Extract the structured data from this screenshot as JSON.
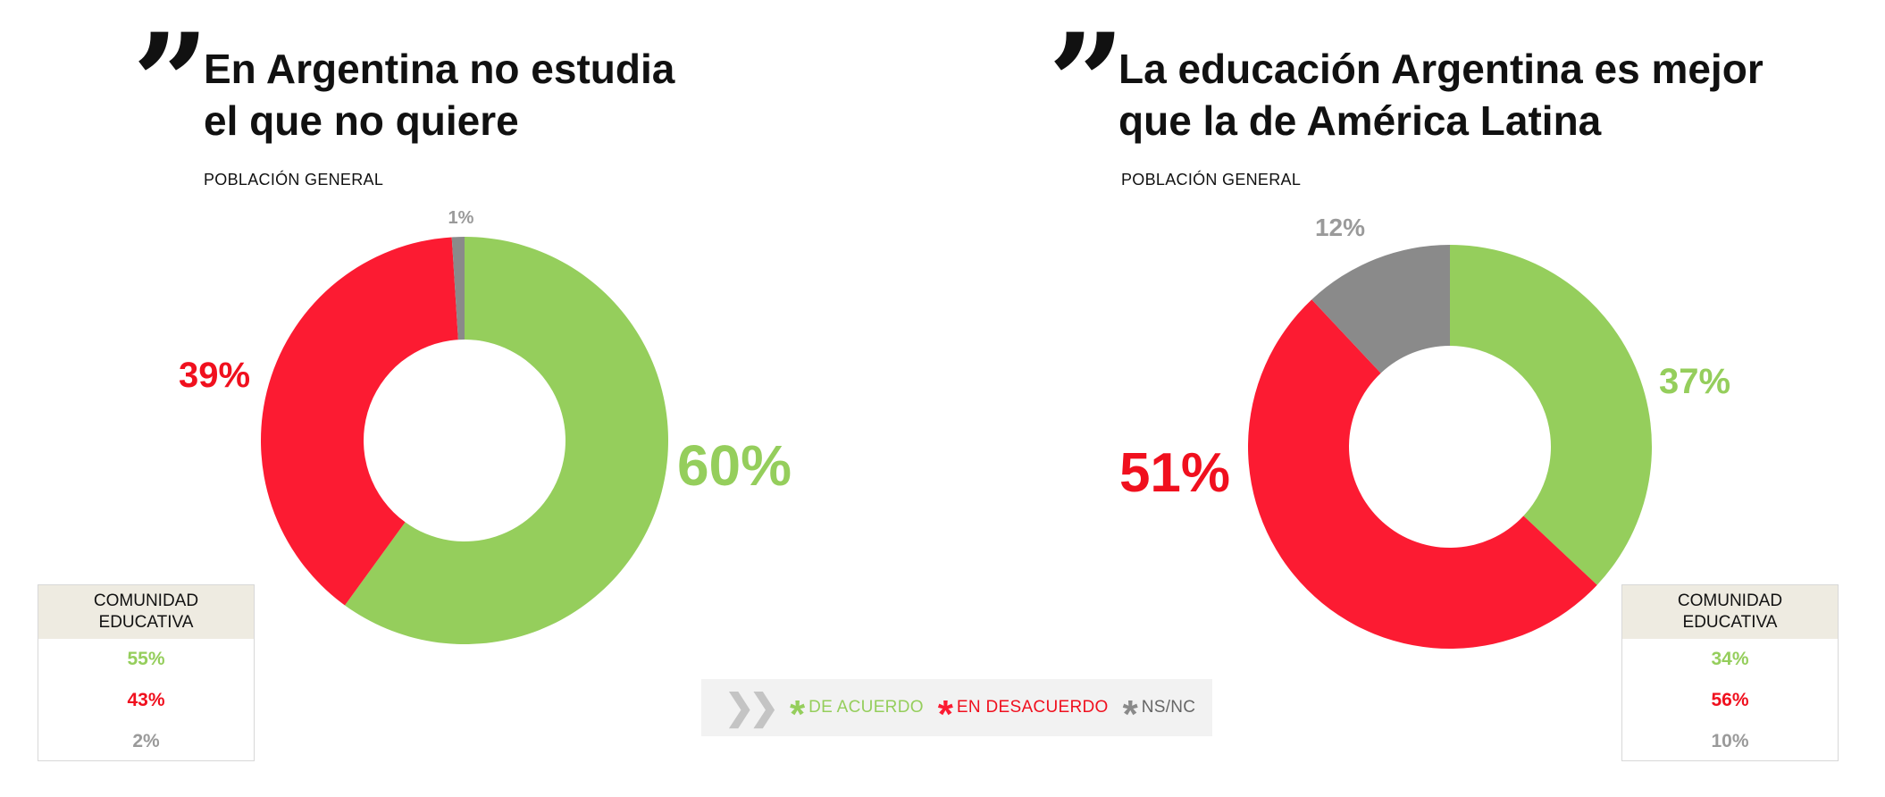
{
  "colors": {
    "agree": "#95ce5c",
    "disagree": "#fc1b32",
    "nsnc": "#8a8a8a",
    "nsnc_text": "#9a9a9a",
    "disagree_text": "#f0101e"
  },
  "legend": {
    "items": [
      {
        "label": "DE ACUERDO",
        "color": "#95ce5c"
      },
      {
        "label": "EN DESACUERDO",
        "color": "#fc1b32"
      },
      {
        "label": "NS/NC",
        "color": "#8a8a8a"
      }
    ]
  },
  "chart_data": [
    {
      "type": "pie",
      "title": "En Argentina no estudia\nel que no quiere",
      "subtitle": "POBLACIÓN GENERAL",
      "categories": [
        "DE ACUERDO",
        "EN DESACUERDO",
        "NS/NC"
      ],
      "values": [
        60,
        39,
        1
      ],
      "labels": [
        "60%",
        "39%",
        "1%"
      ],
      "side_table": {
        "header": "COMUNIDAD\nEDUCATIVA",
        "values": [
          "55%",
          "43%",
          "2%"
        ]
      }
    },
    {
      "type": "pie",
      "title": "La educación Argentina es mejor\nque la de América Latina",
      "subtitle": "POBLACIÓN GENERAL",
      "categories": [
        "DE ACUERDO",
        "EN DESACUERDO",
        "NS/NC"
      ],
      "values": [
        37,
        51,
        12
      ],
      "labels": [
        "37%",
        "51%",
        "12%"
      ],
      "side_table": {
        "header": "COMUNIDAD\nEDUCATIVA",
        "values": [
          "34%",
          "56%",
          "10%"
        ]
      }
    }
  ]
}
